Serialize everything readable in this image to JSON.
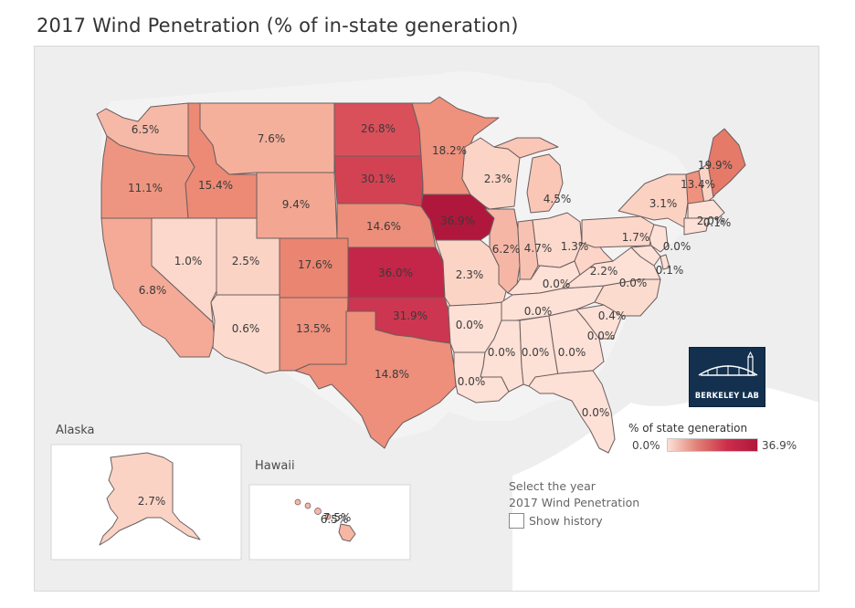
{
  "title": "2017 Wind Penetration (% of in-state generation)",
  "insets": {
    "alaska_title": "Alaska",
    "hawaii_title": "Hawaii"
  },
  "legend": {
    "title": "% of state generation",
    "min": "0.0%",
    "max": "36.9%"
  },
  "logo": {
    "text": "BERKELEY LAB"
  },
  "controls": {
    "prompt": "Select the year",
    "selection": "2017 Wind Penetration",
    "checkbox_label": "Show history"
  },
  "color_scale": {
    "low": "#fde0d6",
    "high": "#b0173c"
  },
  "labels": {
    "WA": "6.5%",
    "OR": "11.1%",
    "CA": "6.8%",
    "ID": "15.4%",
    "NV": "1.0%",
    "MT": "7.6%",
    "WY": "9.4%",
    "UT": "2.5%",
    "AZ": "0.6%",
    "CO": "17.6%",
    "NM": "13.5%",
    "ND": "26.8%",
    "SD": "30.1%",
    "NE": "14.6%",
    "KS": "36.0%",
    "OK": "31.9%",
    "TX": "14.8%",
    "MN": "18.2%",
    "IA": "36.9%",
    "MO": "2.3%",
    "AR": "0.0%",
    "LA": "0.0%",
    "WI": "2.3%",
    "IL": "6.2%",
    "MI": "4.5%",
    "IN": "4.7%",
    "OH": "1.3%",
    "KY": "0.0%",
    "TN": "0.0%",
    "MS": "0.0%",
    "AL": "0.0%",
    "GA": "0.0%",
    "FL": "0.0%",
    "SC": "0.0%",
    "NC": "0.4%",
    "VA": "0.0%",
    "WV": "2.2%",
    "PA": "1.7%",
    "NY": "3.1%",
    "VT": "13.4%",
    "ME": "19.9%",
    "NJ": "0.0%",
    "DE": "0.0%",
    "MD": "0.1%",
    "NE_small": "2.0%",
    "MA": "0.1%",
    "AK": "2.7%",
    "HI": "6.5%",
    "HI_overlap": "7.5%"
  }
}
